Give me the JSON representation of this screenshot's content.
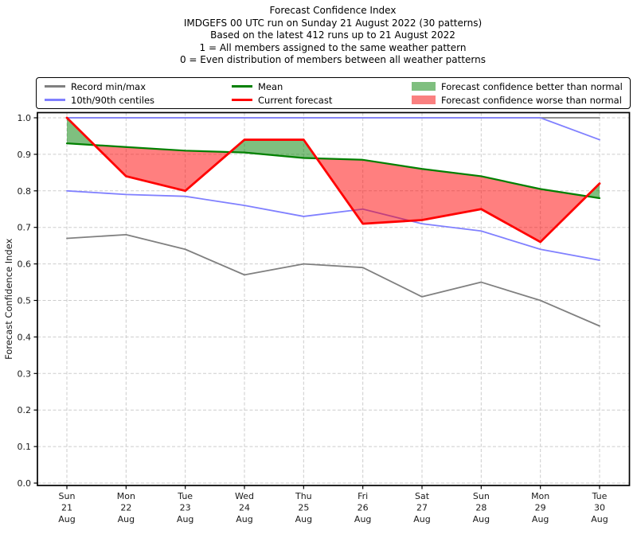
{
  "title_lines": [
    "Forecast Confidence Index",
    "IMDGEFS 00 UTC run on Sunday 21 August 2022 (30 patterns)",
    "Based on the latest 412 runs up to 21 August 2022",
    "1 = All members assigned to the same weather pattern",
    "0 = Even distribution of members between all weather patterns"
  ],
  "legend": {
    "items": [
      {
        "label": "Record min/max",
        "swatch": "line",
        "color": "#808080"
      },
      {
        "label": "10th/90th centiles",
        "swatch": "line",
        "color": "#8080ff"
      },
      {
        "label": "Mean",
        "swatch": "line",
        "color": "#008000"
      },
      {
        "label": "Current forecast",
        "swatch": "line",
        "color": "#ff0000"
      },
      {
        "label": "Forecast confidence better than normal",
        "swatch": "patch",
        "color": "#7fbf7f"
      },
      {
        "label": "Forecast confidence worse than normal",
        "swatch": "patch",
        "color": "#fa8080"
      }
    ]
  },
  "chart_data": {
    "type": "line",
    "title": "Forecast Confidence Index",
    "xlabel": "",
    "ylabel": "Forecast Confidence Index",
    "ylim": [
      0.0,
      1.0
    ],
    "ytick_step": 0.1,
    "grid": true,
    "legend_position": "top",
    "categories": [
      [
        "Sun",
        "21",
        "Aug"
      ],
      [
        "Mon",
        "22",
        "Aug"
      ],
      [
        "Tue",
        "23",
        "Aug"
      ],
      [
        "Wed",
        "24",
        "Aug"
      ],
      [
        "Thu",
        "25",
        "Aug"
      ],
      [
        "Fri",
        "26",
        "Aug"
      ],
      [
        "Sat",
        "27",
        "Aug"
      ],
      [
        "Sun",
        "28",
        "Aug"
      ],
      [
        "Mon",
        "29",
        "Aug"
      ],
      [
        "Tue",
        "30",
        "Aug"
      ]
    ],
    "series": [
      {
        "name": "Record max",
        "color": "#808080",
        "width": 1.8,
        "zorder": 1,
        "values": [
          1.0,
          1.0,
          1.0,
          1.0,
          1.0,
          1.0,
          1.0,
          1.0,
          1.0,
          1.0
        ]
      },
      {
        "name": "Record min",
        "color": "#808080",
        "width": 1.8,
        "zorder": 1,
        "values": [
          0.67,
          0.68,
          0.64,
          0.57,
          0.6,
          0.59,
          0.51,
          0.55,
          0.5,
          0.43
        ]
      },
      {
        "name": "90th centile",
        "color": "#8080ff",
        "width": 1.8,
        "zorder": 1,
        "values": [
          1.0,
          1.0,
          1.0,
          1.0,
          1.0,
          1.0,
          1.0,
          1.0,
          1.0,
          0.94
        ]
      },
      {
        "name": "10th centile",
        "color": "#8080ff",
        "width": 1.8,
        "zorder": 1,
        "values": [
          0.8,
          0.79,
          0.785,
          0.76,
          0.73,
          0.75,
          0.71,
          0.69,
          0.64,
          0.61
        ]
      },
      {
        "name": "Mean",
        "color": "#008000",
        "width": 2.2,
        "zorder": 3,
        "values": [
          0.93,
          0.92,
          0.91,
          0.905,
          0.89,
          0.885,
          0.86,
          0.84,
          0.805,
          0.78
        ]
      },
      {
        "name": "Current forecast",
        "color": "#ff0000",
        "width": 2.8,
        "zorder": 3,
        "values": [
          1.0,
          0.84,
          0.8,
          0.94,
          0.94,
          0.71,
          0.72,
          0.75,
          0.66,
          0.82
        ]
      }
    ],
    "fill_between": {
      "upper": "Current forecast",
      "lower": "Mean",
      "better_color": "#008000",
      "worse_color": "#ff0000",
      "opacity": 0.5
    }
  }
}
